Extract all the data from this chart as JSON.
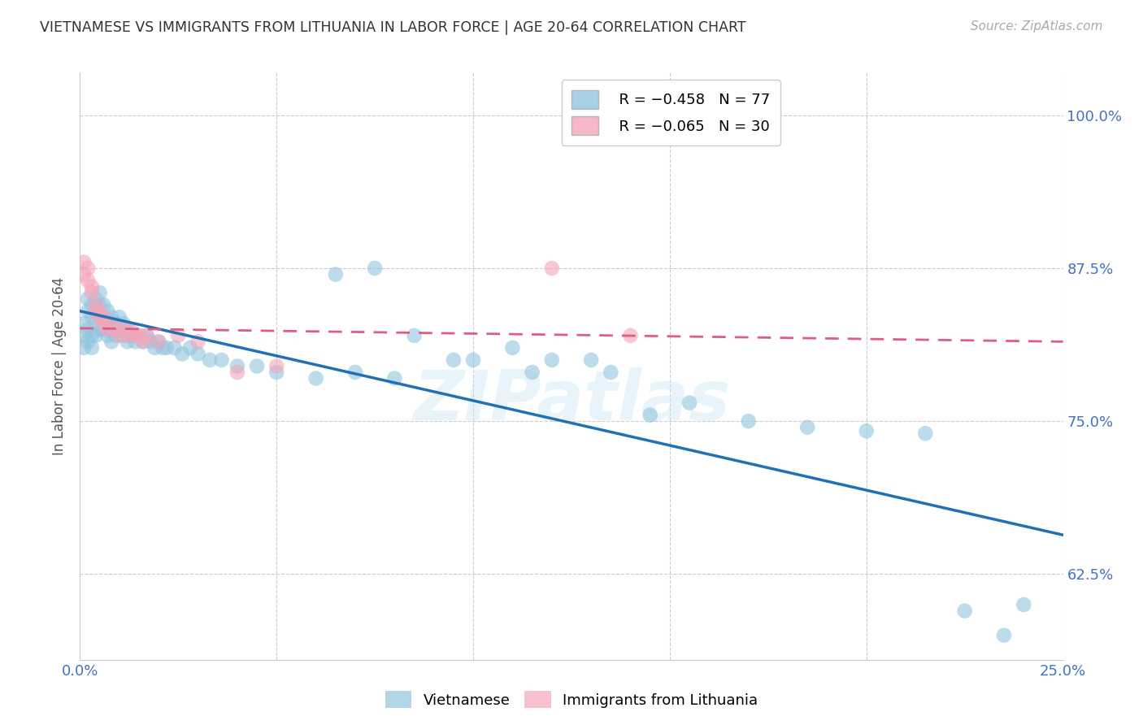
{
  "title": "VIETNAMESE VS IMMIGRANTS FROM LITHUANIA IN LABOR FORCE | AGE 20-64 CORRELATION CHART",
  "source": "Source: ZipAtlas.com",
  "ylabel": "In Labor Force | Age 20-64",
  "x_min": 0.0,
  "x_max": 0.25,
  "y_min": 0.555,
  "y_max": 1.035,
  "x_ticks": [
    0.0,
    0.05,
    0.1,
    0.15,
    0.2,
    0.25
  ],
  "x_tick_labels": [
    "0.0%",
    "",
    "",
    "",
    "",
    "25.0%"
  ],
  "y_ticks": [
    0.625,
    0.75,
    0.875,
    1.0
  ],
  "y_tick_labels": [
    "62.5%",
    "75.0%",
    "87.5%",
    "100.0%"
  ],
  "legend_r1": "R = −0.458",
  "legend_n1": "N = 77",
  "legend_r2": "R = −0.065",
  "legend_n2": "N = 30",
  "blue_color": "#92c5de",
  "pink_color": "#f4a6b8",
  "line_blue": "#2171b5",
  "line_pink": "#e05c80",
  "scatter_blue": {
    "x": [
      0.001,
      0.001,
      0.001,
      0.002,
      0.002,
      0.002,
      0.002,
      0.003,
      0.003,
      0.003,
      0.003,
      0.004,
      0.004,
      0.004,
      0.004,
      0.005,
      0.005,
      0.005,
      0.005,
      0.006,
      0.006,
      0.006,
      0.007,
      0.007,
      0.007,
      0.008,
      0.008,
      0.008,
      0.009,
      0.009,
      0.01,
      0.01,
      0.011,
      0.011,
      0.012,
      0.012,
      0.013,
      0.014,
      0.015,
      0.016,
      0.017,
      0.018,
      0.019,
      0.02,
      0.021,
      0.022,
      0.024,
      0.026,
      0.028,
      0.03,
      0.033,
      0.036,
      0.04,
      0.045,
      0.05,
      0.06,
      0.07,
      0.08,
      0.095,
      0.11,
      0.12,
      0.135,
      0.065,
      0.075,
      0.085,
      0.1,
      0.115,
      0.13,
      0.145,
      0.155,
      0.17,
      0.185,
      0.2,
      0.215,
      0.225,
      0.235,
      0.24
    ],
    "y": [
      0.83,
      0.82,
      0.81,
      0.85,
      0.84,
      0.825,
      0.815,
      0.845,
      0.835,
      0.82,
      0.81,
      0.85,
      0.84,
      0.83,
      0.82,
      0.855,
      0.845,
      0.835,
      0.825,
      0.845,
      0.835,
      0.825,
      0.84,
      0.83,
      0.82,
      0.835,
      0.825,
      0.815,
      0.83,
      0.82,
      0.835,
      0.825,
      0.83,
      0.82,
      0.825,
      0.815,
      0.82,
      0.815,
      0.82,
      0.815,
      0.82,
      0.815,
      0.81,
      0.815,
      0.81,
      0.81,
      0.81,
      0.805,
      0.81,
      0.805,
      0.8,
      0.8,
      0.795,
      0.795,
      0.79,
      0.785,
      0.79,
      0.785,
      0.8,
      0.81,
      0.8,
      0.79,
      0.87,
      0.875,
      0.82,
      0.8,
      0.79,
      0.8,
      0.755,
      0.765,
      0.75,
      0.745,
      0.742,
      0.74,
      0.595,
      0.575,
      0.6
    ]
  },
  "scatter_pink": {
    "x": [
      0.001,
      0.001,
      0.002,
      0.002,
      0.003,
      0.003,
      0.004,
      0.004,
      0.005,
      0.005,
      0.006,
      0.006,
      0.007,
      0.008,
      0.009,
      0.01,
      0.011,
      0.012,
      0.013,
      0.014,
      0.015,
      0.016,
      0.017,
      0.02,
      0.025,
      0.03,
      0.04,
      0.05,
      0.12,
      0.14
    ],
    "y": [
      0.88,
      0.87,
      0.875,
      0.865,
      0.86,
      0.855,
      0.845,
      0.84,
      0.84,
      0.835,
      0.83,
      0.835,
      0.825,
      0.83,
      0.825,
      0.82,
      0.825,
      0.82,
      0.825,
      0.82,
      0.82,
      0.815,
      0.82,
      0.815,
      0.82,
      0.815,
      0.79,
      0.795,
      0.875,
      0.82
    ]
  },
  "blue_line_x": [
    0.0,
    0.25
  ],
  "blue_line_y": [
    0.84,
    0.657
  ],
  "pink_line_x": [
    0.0,
    0.25
  ],
  "pink_line_y": [
    0.826,
    0.815
  ],
  "watermark": "ZIPatlas",
  "background_color": "#ffffff",
  "grid_color": "#cccccc"
}
